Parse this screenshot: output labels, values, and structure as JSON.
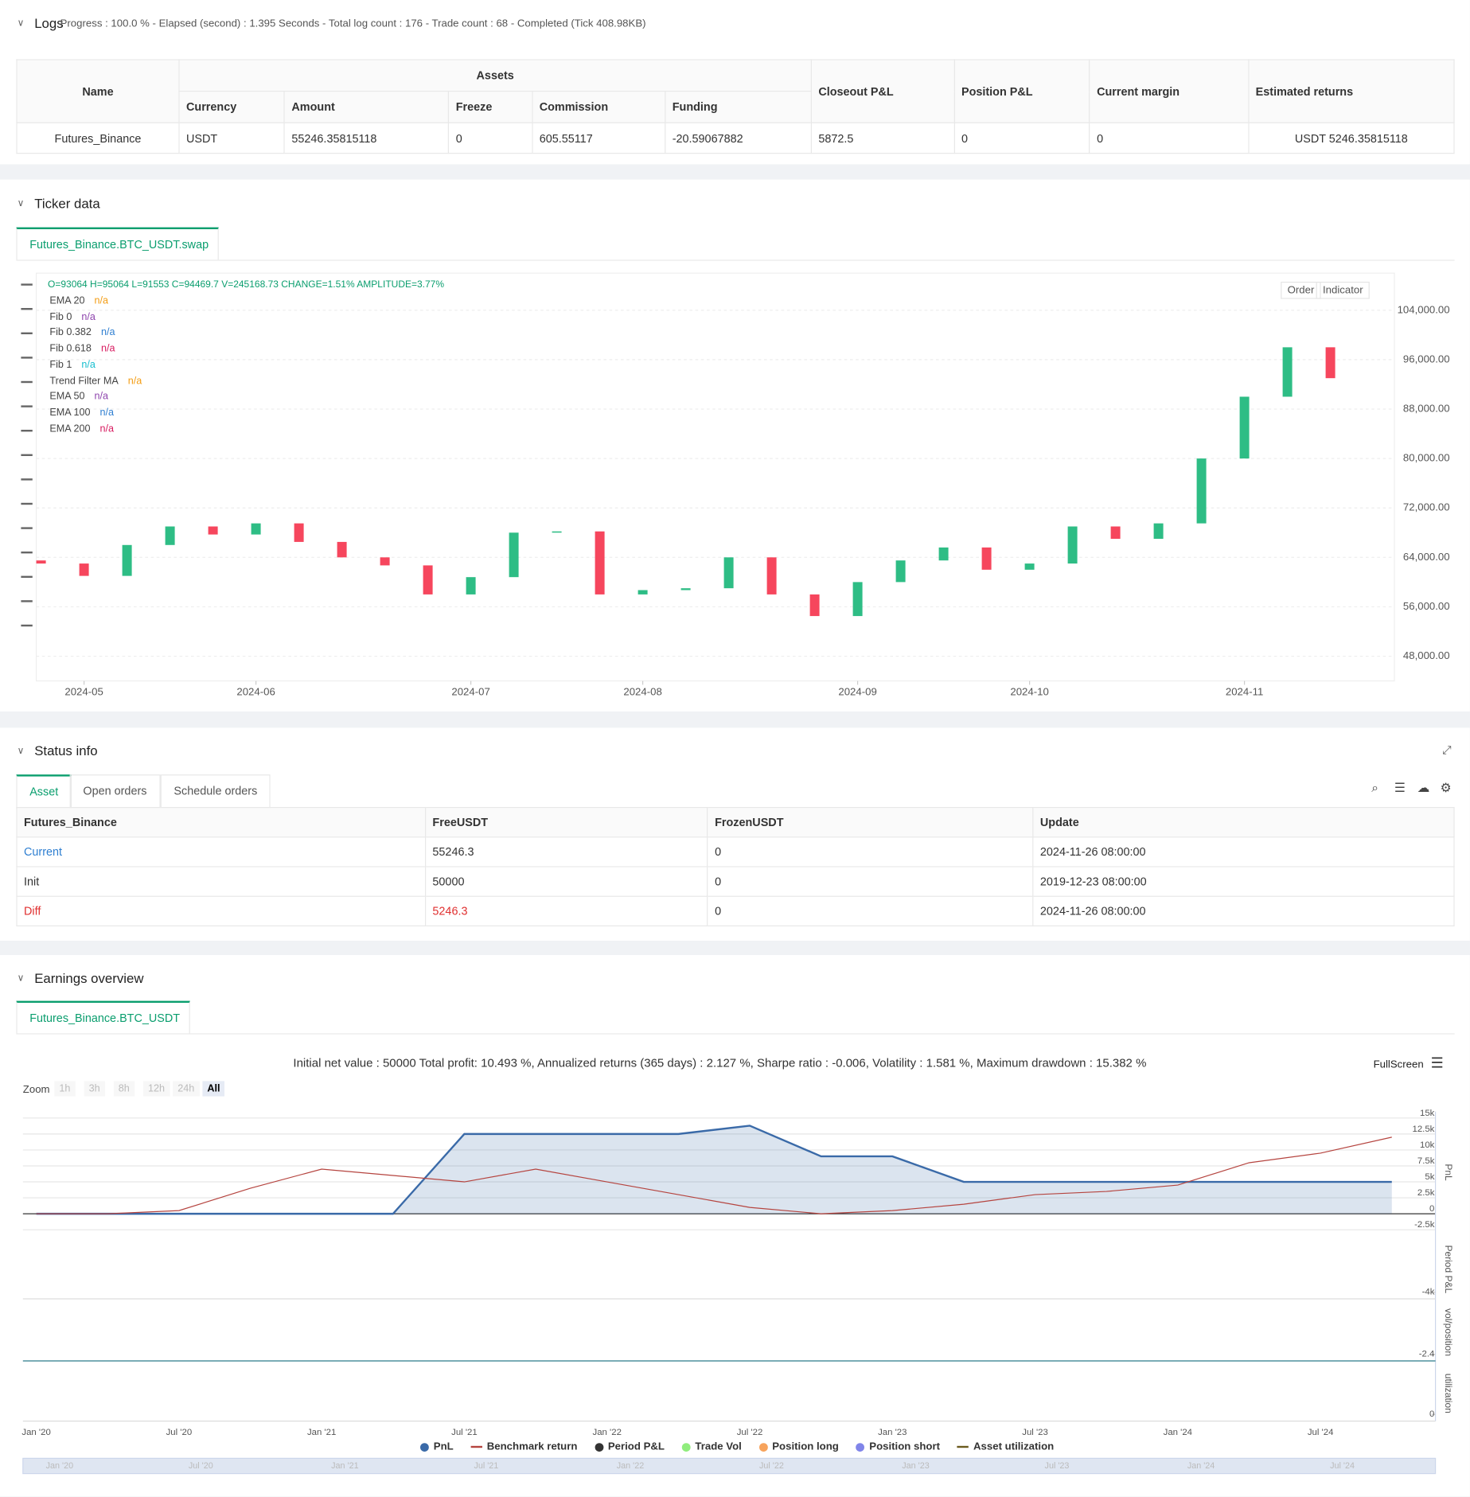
{
  "logs": {
    "title": "Logs",
    "summary": "Progress : 100.0 % - Elapsed (second) : 1.395  Seconds - Total log count : 176 - Trade count : 68 - Completed (Tick 408.98KB)",
    "table": {
      "headers": [
        "Name",
        "Assets",
        "Closeout P&L",
        "Position P&L",
        "Current margin",
        "Estimated returns"
      ],
      "subheaders": [
        "Currency",
        "Amount",
        "Freeze",
        "Commission",
        "Funding"
      ],
      "rows": [
        [
          "Futures_Binance",
          "USDT",
          "55246.35815118",
          "0",
          "605.55117",
          "-20.59067882",
          "5872.5",
          "0",
          "0",
          "USDT 5246.35815118"
        ]
      ]
    }
  },
  "ticker": {
    "title": "Ticker data",
    "tab": "Futures_Binance.BTC_USDT.swap",
    "ohlc": "O=93064 H=95064 L=91553 C=94469.7 V=245168.73 CHANGE=1.51% AMPLITUDE=3.77%",
    "buttons": [
      "Order",
      "Indicator"
    ],
    "legend": [
      {
        "name": "EMA 20",
        "value": "n/a",
        "color": "#f39c12"
      },
      {
        "name": "Fib 0",
        "value": "n/a",
        "color": "#8e44ad"
      },
      {
        "name": "Fib 0.382",
        "value": "n/a",
        "color": "#2f7fd1"
      },
      {
        "name": "Fib 0.618",
        "value": "n/a",
        "color": "#d81b60"
      },
      {
        "name": "Fib 1",
        "value": "n/a",
        "color": "#17becf"
      },
      {
        "name": "Trend Filter MA",
        "value": "n/a",
        "color": "#f39c12"
      },
      {
        "name": "EMA 50",
        "value": "n/a",
        "color": "#8e44ad"
      },
      {
        "name": "EMA 100",
        "value": "n/a",
        "color": "#2f7fd1"
      },
      {
        "name": "EMA 200",
        "value": "n/a",
        "color": "#d81b60"
      }
    ]
  },
  "status": {
    "title": "Status info",
    "tabs": [
      "Asset",
      "Open orders",
      "Schedule orders"
    ],
    "headers": [
      "Futures_Binance",
      "FreeUSDT",
      "FrozenUSDT",
      "Update"
    ],
    "rows": [
      [
        "Current",
        "55246.3",
        "0",
        "2024-11-26 08:00:00"
      ],
      [
        "Init",
        "50000",
        "0",
        "2019-12-23 08:00:00"
      ],
      [
        "Diff",
        "5246.3",
        "0",
        "2024-11-26 08:00:00"
      ]
    ]
  },
  "earnings": {
    "title": "Earnings overview",
    "tab": "Futures_Binance.BTC_USDT",
    "summary": "Initial net value : 50000  Total profit: 10.493 %, Annualized returns (365 days) : 2.127 %, Sharpe ratio : -0.006, Volatility : 1.581 %, Maximum drawdown : 15.382 %",
    "fullscreen": "FullScreen",
    "zoom": "Zoom",
    "zoom_buttons": [
      "1h",
      "3h",
      "8h",
      "12h",
      "24h",
      "All"
    ],
    "panels": [
      {
        "title": "Period P&L",
        "tick": {
          "value": -4000,
          "label": "-4k"
        }
      },
      {
        "title": "vol/position",
        "tick": {
          "value": -2.4,
          "label": "-2.4"
        }
      },
      {
        "title": "utilization",
        "tick": 0
      }
    ],
    "legend": [
      {
        "name": "Period P&L",
        "color": "#333333"
      },
      {
        "name": "Trade Vol",
        "color": "#90ed7d"
      },
      {
        "name": "Position long",
        "color": "#f7a35c"
      },
      {
        "name": "Position short",
        "color": "#8085e9"
      },
      {
        "name": "Asset utilization",
        "color": "#6b5b1e"
      }
    ]
  },
  "chart_data": [
    {
      "type": "candlestick",
      "categories": [
        null,
        "2024-05",
        null,
        null,
        null,
        "2024-06",
        null,
        null,
        null,
        null,
        "2024-07",
        null,
        null,
        null,
        "2024-08",
        null,
        null,
        null,
        null,
        "2024-09",
        null,
        null,
        null,
        "2024-10",
        null,
        null,
        null,
        null,
        "2024-11",
        null,
        null
      ],
      "open": [
        63500,
        63000,
        61000,
        66000,
        69000,
        67700,
        69500,
        66500,
        64000,
        62700,
        58000,
        60800,
        68000,
        68200,
        58000,
        58700,
        59000,
        64000,
        58000,
        54500,
        60000,
        63500,
        65600,
        62000,
        63000,
        69000,
        67000,
        69500,
        80000,
        90000,
        98000
      ],
      "close": [
        63000,
        61000,
        66000,
        69000,
        67700,
        69500,
        66500,
        64000,
        62700,
        58000,
        60800,
        68000,
        68200,
        58000,
        58700,
        59000,
        64000,
        58000,
        54500,
        60000,
        63500,
        65600,
        62000,
        63000,
        69000,
        67000,
        69500,
        80000,
        90000,
        98000,
        93000
      ],
      "up_color": "#2ebd85",
      "down_color": "#f6465d",
      "ylim": [
        44000,
        110000
      ],
      "yticks": [
        {
          "value": 48000,
          "label": "48,000.00"
        },
        {
          "value": 56000,
          "label": "56,000.00"
        },
        {
          "value": 64000,
          "label": "64,000.00"
        },
        {
          "value": 72000,
          "label": "72,000.00"
        },
        {
          "value": 80000,
          "label": "80,000.00"
        },
        {
          "value": 88000,
          "label": "88,000.00"
        },
        {
          "value": 96000,
          "label": "96,000.00"
        },
        {
          "value": 104000,
          "label": "104,000.00"
        }
      ],
      "grid": true
    },
    {
      "type": "line",
      "y_label": "PnL",
      "categories": [
        "Jan '20",
        null,
        "Jul '20",
        null,
        "Jan '21",
        null,
        "Jul '21",
        null,
        "Jan '22",
        null,
        "Jul '22",
        null,
        "Jan '23",
        null,
        "Jul '23",
        null,
        "Jan '24",
        null,
        "Jul '24",
        null
      ],
      "series": [
        {
          "name": "PnL",
          "color": "#3a6aa8",
          "values": [
            0,
            0,
            0,
            0,
            0,
            0,
            12500,
            12500,
            12500,
            12500,
            13800,
            9000,
            9000,
            5000,
            5000,
            5000,
            5000,
            5000,
            5000,
            5000
          ]
        },
        {
          "name": "Benchmark return",
          "color": "#b5443f",
          "values": [
            0,
            0,
            500,
            4000,
            7000,
            6000,
            5000,
            7000,
            5000,
            3000,
            1000,
            0,
            500,
            1500,
            3000,
            3500,
            4500,
            8000,
            9500,
            12000
          ]
        }
      ],
      "ylim": [
        -3000,
        16000
      ],
      "yticks": [
        {
          "value": 15000,
          "label": "15k"
        },
        {
          "value": 12500,
          "label": "12.5k"
        },
        {
          "value": 10000,
          "label": "10k"
        },
        {
          "value": 7500,
          "label": "7.5k"
        },
        {
          "value": 5000,
          "label": "5k"
        },
        {
          "value": 2500,
          "label": "2.5k"
        },
        0,
        {
          "value": -2500,
          "label": "-2.5k"
        }
      ],
      "grid": true
    }
  ]
}
